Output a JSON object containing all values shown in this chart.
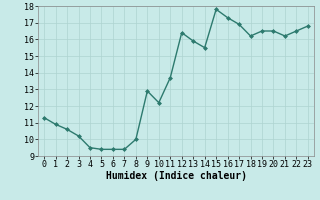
{
  "x": [
    0,
    1,
    2,
    3,
    4,
    5,
    6,
    7,
    8,
    9,
    10,
    11,
    12,
    13,
    14,
    15,
    16,
    17,
    18,
    19,
    20,
    21,
    22,
    23
  ],
  "y": [
    11.3,
    10.9,
    10.6,
    10.2,
    9.5,
    9.4,
    9.4,
    9.4,
    10.0,
    12.9,
    12.2,
    13.7,
    16.4,
    15.9,
    15.5,
    17.8,
    17.3,
    16.9,
    16.2,
    16.5,
    16.5,
    16.2,
    16.5,
    16.8
  ],
  "line_color": "#2d7a6e",
  "marker": "D",
  "marker_size": 2,
  "bg_color": "#c8eae8",
  "grid_color": "#aed4d0",
  "xlabel": "Humidex (Indice chaleur)",
  "xlim": [
    -0.5,
    23.5
  ],
  "ylim": [
    9,
    18
  ],
  "yticks": [
    9,
    10,
    11,
    12,
    13,
    14,
    15,
    16,
    17,
    18
  ],
  "xticks": [
    0,
    1,
    2,
    3,
    4,
    5,
    6,
    7,
    8,
    9,
    10,
    11,
    12,
    13,
    14,
    15,
    16,
    17,
    18,
    19,
    20,
    21,
    22,
    23
  ],
  "xlabel_fontsize": 7,
  "tick_fontsize": 6,
  "linewidth": 1.0,
  "spine_color": "#888888"
}
